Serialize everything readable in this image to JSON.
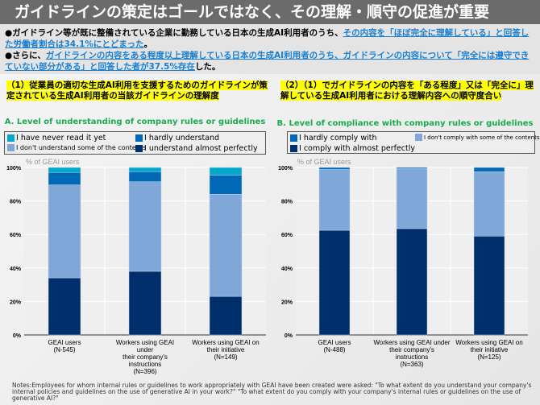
{
  "title": "ガイドラインの策定はゴールではなく、その理解・順守の促進が重要",
  "bullets": [
    {
      "pre": "●ガイドライン等が既に整備されている企業に勤務している日本の生成AI利用者のうち、",
      "hl": "その内容を「ほぼ完全に理解している」と回答した労働者割合は34.1%にとどまった",
      "post": "。"
    },
    {
      "pre": "●さらに、",
      "hl": "ガイドラインの内容をある程度以上理解している日本の生成AI利用者のうち、ガイドラインの内容について「完全には遵守できていない部分がある」と回答した者が37.5%存在",
      "post": "した。"
    }
  ],
  "section1": "（1）従業員の適切な生成AI利用を支援するためのガイドラインが策定されている生成AI利用者の当該ガイドラインの理解度",
  "section2": "（2）（1）でガイドラインの内容を「ある程度」又は「完全に」理解している生成AI利用者における理解内容への順守度合い",
  "notes": "Notes:Employees for whom internal rules or guidelines to work appropriately with GEAI have been created were asked: \"To what extent do you understand your company's internal policies and guidelines on the use of generative AI in your work?\" \"To what extent do you comply with your company's internal rules or guidelines on the use of generative AI?\"",
  "chart_data": [
    {
      "type": "bar",
      "stacked": true,
      "title": "A. Level of understanding of company rules or guidelines",
      "ylabel": "% of GEAI users",
      "ylim": [
        0,
        100
      ],
      "yticks": [
        "0%",
        "20%",
        "40%",
        "60%",
        "80%",
        "100%"
      ],
      "grid": true,
      "legend": "top",
      "categories": [
        "GEAI users\n(N-545)",
        "Workers using GEAI\nunder\ntheir company's\ninstructions\n(N=396)",
        "Workers using GEAI on\ntheir initiative\n(N=149)"
      ],
      "series": [
        {
          "name": "I understand almost perfectly",
          "color": "#002f6c",
          "values": [
            34.1,
            38,
            23
          ]
        },
        {
          "name": "I don't understand some of the contents",
          "color": "#7fa8d9",
          "values": [
            55.5,
            53.5,
            61
          ]
        },
        {
          "name": "I hardly understand",
          "color": "#0068b5",
          "values": [
            7.4,
            6,
            11.5
          ]
        },
        {
          "name": "I have never read it yet",
          "color": "#00a8cc",
          "values": [
            3,
            2.5,
            4.5
          ]
        }
      ]
    },
    {
      "type": "bar",
      "stacked": true,
      "title": "B. Level of compliance with company rules or guidelines",
      "ylabel": "% of GEAI users",
      "ylim": [
        0,
        100
      ],
      "yticks": [
        "0%",
        "20%",
        "40%",
        "60%",
        "80%",
        "100%"
      ],
      "grid": true,
      "legend": "top",
      "categories": [
        "GEAI users\n(N-488)",
        "Workers using GEAI under\ntheir company's\ninstructions\n(N=363)",
        "Workers using GEAI on\ntheir initiative\n(N=125)"
      ],
      "series": [
        {
          "name": "I comply with almost perfectly",
          "color": "#002f6c",
          "values": [
            62.5,
            63.5,
            59
          ]
        },
        {
          "name": "I don't comply with some of the contents",
          "color": "#7fa8d9",
          "values": [
            36.3,
            35.8,
            38.5
          ]
        },
        {
          "name": "I hardly comply with",
          "color": "#0068b5",
          "values": [
            1.2,
            0.7,
            2.5
          ]
        }
      ]
    }
  ]
}
